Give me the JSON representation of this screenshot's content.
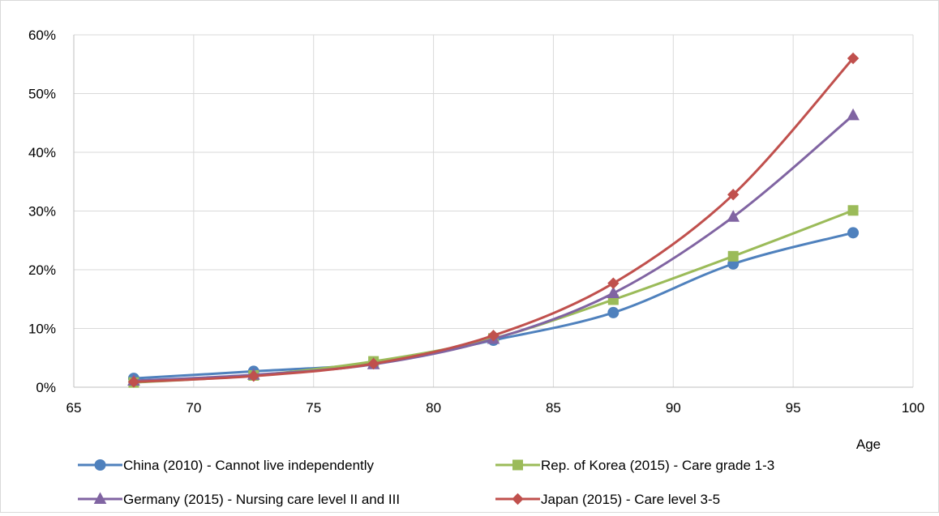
{
  "chart_data": {
    "type": "line",
    "title": "",
    "xlabel": "Age",
    "ylabel": "",
    "xlim": [
      65,
      100
    ],
    "ylim": [
      0,
      0.6
    ],
    "x_ticks": [
      65,
      70,
      75,
      80,
      85,
      90,
      95,
      100
    ],
    "x_tick_labels": [
      "65",
      "70",
      "75",
      "80",
      "85",
      "90",
      "95",
      "100"
    ],
    "y_ticks": [
      0,
      0.1,
      0.2,
      0.3,
      0.4,
      0.5,
      0.6
    ],
    "y_tick_labels": [
      "0%",
      "10%",
      "20%",
      "30%",
      "40%",
      "50%",
      "60%"
    ],
    "grid": true,
    "legend_position": "bottom",
    "x": [
      67.5,
      72.5,
      77.5,
      82.5,
      87.5,
      92.5,
      97.5
    ],
    "series": [
      {
        "name": "China (2010) - Cannot live independently",
        "color": "#4f81bd",
        "marker": "circle",
        "values": [
          0.015,
          0.027,
          0.041,
          0.08,
          0.127,
          0.21,
          0.263
        ]
      },
      {
        "name": "Rep. of Korea (2015) - Care grade 1-3",
        "color": "#9bbb59",
        "marker": "square",
        "values": [
          0.008,
          0.02,
          0.044,
          0.083,
          0.149,
          0.223,
          0.301
        ]
      },
      {
        "name": "Germany (2015) - Nursing care level II and III",
        "color": "#8064a2",
        "marker": "triangle",
        "values": [
          0.011,
          0.021,
          0.039,
          0.082,
          0.16,
          0.29,
          0.463
        ]
      },
      {
        "name": "Japan (2015) - Care level 3-5",
        "color": "#c0504d",
        "marker": "diamond",
        "values": [
          0.009,
          0.019,
          0.04,
          0.088,
          0.177,
          0.328,
          0.56
        ]
      }
    ]
  }
}
